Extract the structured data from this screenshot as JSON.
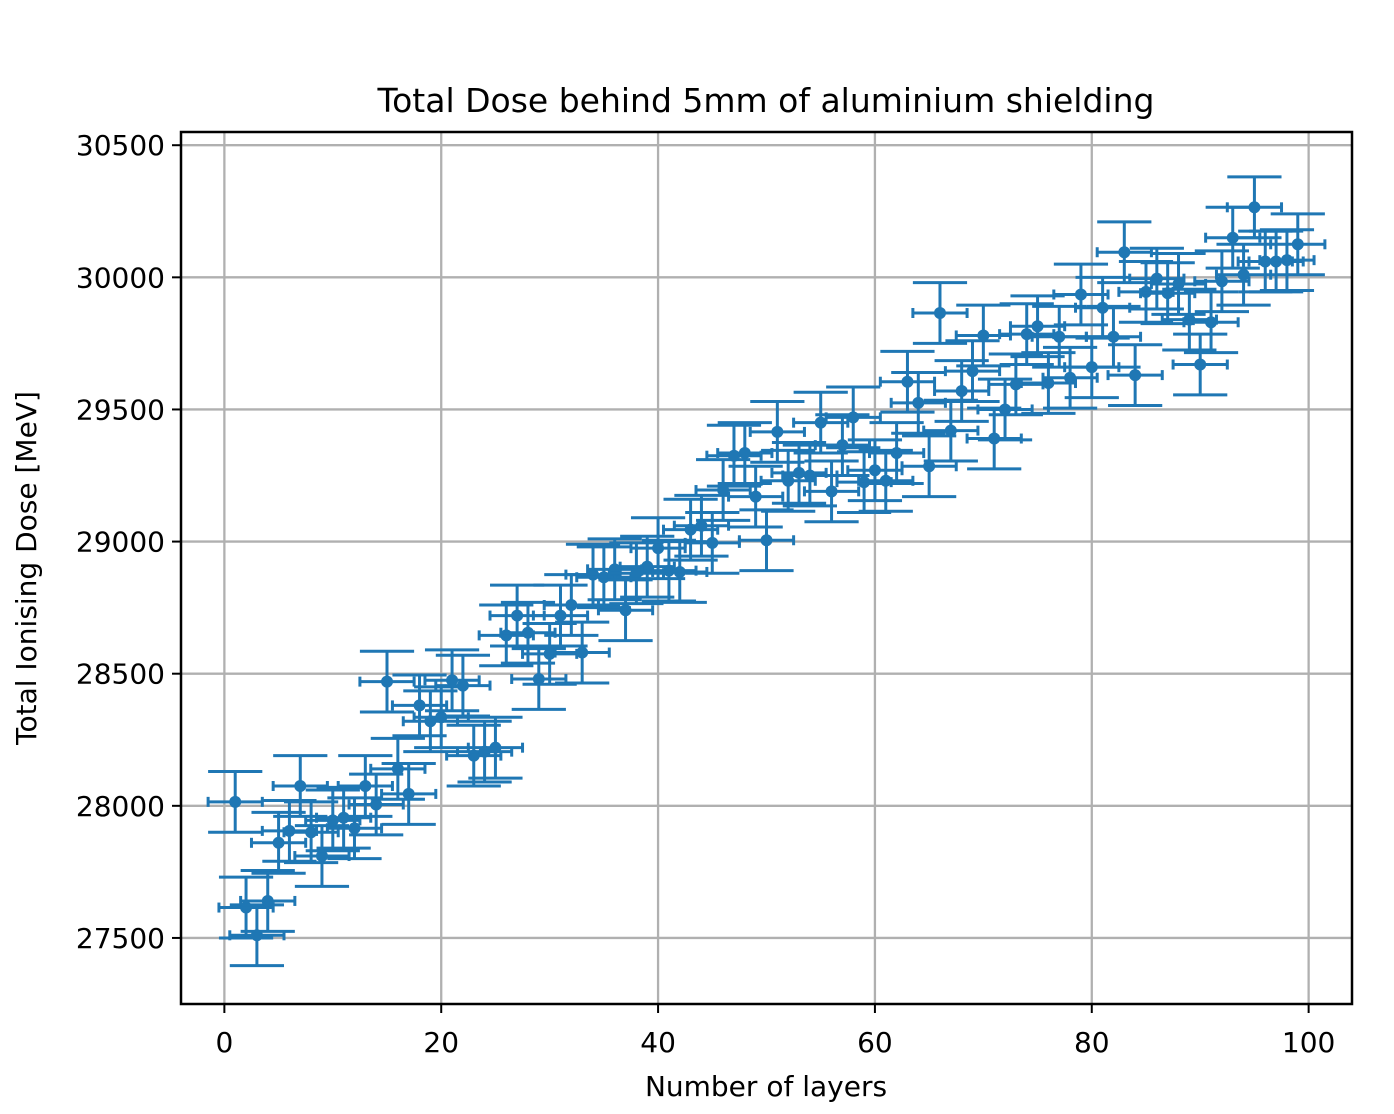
{
  "chart_data": {
    "type": "scatter",
    "title": "Total Dose behind 5mm of aluminium shielding",
    "xlabel": "Number of layers",
    "ylabel": "Total Ionising Dose [MeV]",
    "xlim": [
      -4,
      104
    ],
    "ylim": [
      27250,
      30550
    ],
    "xticks": [
      0,
      20,
      40,
      60,
      80,
      100
    ],
    "yticks": [
      27500,
      28000,
      28500,
      29000,
      29500,
      30000,
      30500
    ],
    "grid": true,
    "color": "#1f77b4",
    "x_error": 2.5,
    "y_error": 115,
    "x": [
      1,
      2,
      3,
      4,
      5,
      6,
      7,
      8,
      9,
      10,
      11,
      12,
      13,
      14,
      15,
      16,
      17,
      18,
      19,
      20,
      21,
      22,
      23,
      24,
      25,
      26,
      27,
      28,
      29,
      30,
      31,
      32,
      33,
      34,
      35,
      36,
      37,
      38,
      39,
      40,
      41,
      42,
      43,
      44,
      45,
      46,
      47,
      48,
      49,
      50,
      51,
      52,
      53,
      54,
      55,
      56,
      57,
      58,
      59,
      60,
      61,
      62,
      63,
      64,
      65,
      66,
      67,
      68,
      69,
      70,
      71,
      72,
      73,
      74,
      75,
      76,
      77,
      78,
      79,
      80,
      81,
      82,
      83,
      84,
      85,
      86,
      87,
      88,
      89,
      90,
      91,
      92,
      93,
      94,
      95,
      96,
      97,
      98,
      99
    ],
    "y": [
      28015,
      27615,
      27510,
      27640,
      27860,
      27905,
      28075,
      27900,
      27810,
      27945,
      27955,
      27915,
      28075,
      28005,
      28470,
      28140,
      28045,
      28380,
      28320,
      28335,
      28475,
      28455,
      28190,
      28205,
      28220,
      28645,
      28720,
      28655,
      28480,
      28575,
      28720,
      28760,
      28580,
      28875,
      28865,
      28895,
      28740,
      28880,
      28905,
      28975,
      28890,
      28885,
      29045,
      29060,
      28995,
      29195,
      29325,
      29335,
      29170,
      29005,
      29415,
      29230,
      29260,
      29250,
      29450,
      29190,
      29365,
      29470,
      29225,
      29270,
      29230,
      29335,
      29605,
      29525,
      29285,
      29865,
      29420,
      29570,
      29645,
      29780,
      29390,
      29500,
      29595,
      29785,
      29815,
      29600,
      29775,
      29620,
      29935,
      29660,
      29885,
      29775,
      30095,
      29630,
      29945,
      29995,
      29940,
      29975,
      29840,
      29670,
      29830,
      29985,
      30150,
      30010,
      30265,
      30060,
      30060,
      30065,
      30125
    ]
  }
}
